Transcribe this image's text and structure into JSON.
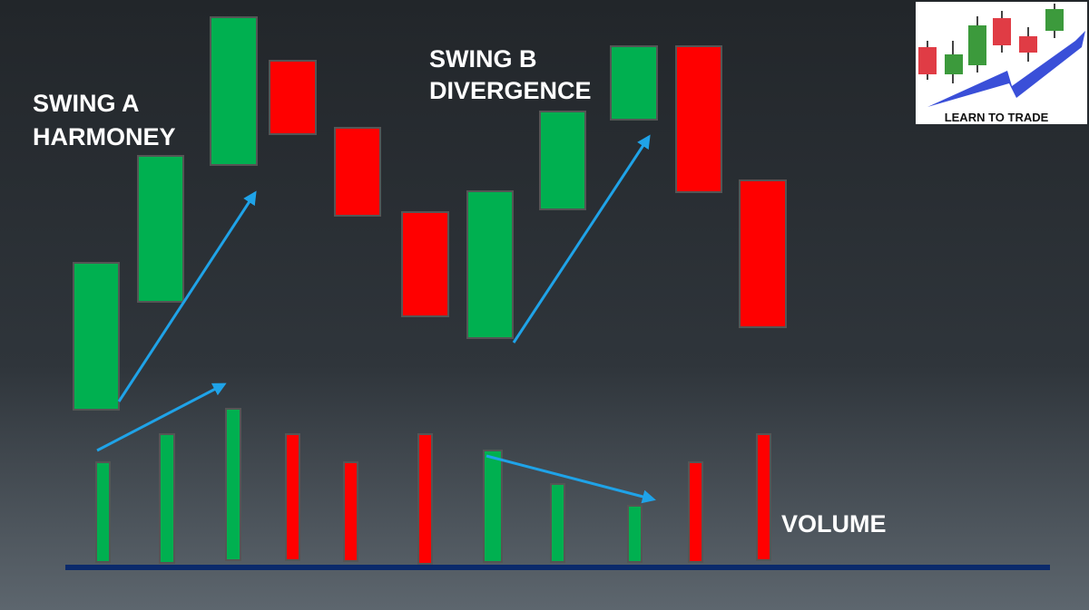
{
  "labels": {
    "swing_a": [
      "SWING A",
      "HARMONEY"
    ],
    "swing_b": [
      "SWING B",
      "DIVERGENCE"
    ],
    "volume": "VOLUME"
  },
  "logo": {
    "text": "LEARN TO TRADE"
  }
}
